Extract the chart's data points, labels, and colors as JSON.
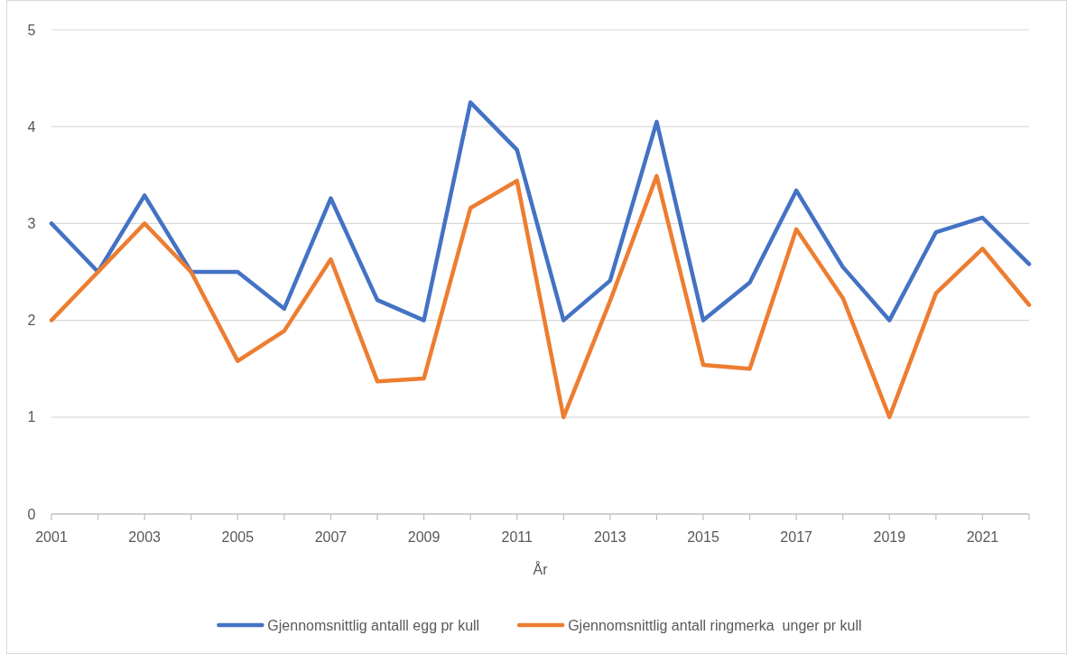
{
  "chart_data": {
    "type": "line",
    "xlabel": "År",
    "x": [
      2001,
      2002,
      2003,
      2004,
      2005,
      2006,
      2007,
      2008,
      2009,
      2010,
      2011,
      2012,
      2013,
      2014,
      2015,
      2016,
      2017,
      2018,
      2019,
      2020,
      2021,
      2022
    ],
    "xlim": [
      2001,
      2022
    ],
    "xticks": [
      2001,
      {
        "value": 2002,
        "label": null
      },
      2003,
      {
        "value": 2004,
        "label": null
      },
      2005,
      {
        "value": 2006,
        "label": null
      },
      2007,
      {
        "value": 2008,
        "label": null
      },
      2009,
      {
        "value": 2010,
        "label": null
      },
      2011,
      {
        "value": 2012,
        "label": null
      },
      2013,
      {
        "value": 2014,
        "label": null
      },
      2015,
      {
        "value": 2016,
        "label": null
      },
      2017,
      {
        "value": 2018,
        "label": null
      },
      2019,
      {
        "value": 2020,
        "label": null
      },
      2021,
      {
        "value": 2022,
        "label": null
      }
    ],
    "ylim": [
      0,
      5
    ],
    "yticks": [
      0,
      1,
      2,
      3,
      4,
      5
    ],
    "grid": "y",
    "legend": "bottom",
    "line_style": "solid",
    "series": [
      {
        "name": "Gjennomsnittlig antalll egg pr kull",
        "color": "#4472c4",
        "values": [
          3.0,
          2.5,
          3.29,
          2.5,
          2.5,
          2.12,
          3.26,
          2.21,
          2.0,
          4.25,
          3.76,
          2.0,
          2.41,
          4.05,
          2.0,
          2.39,
          3.34,
          2.55,
          2.0,
          2.91,
          3.06,
          2.58
        ]
      },
      {
        "name": "Gjennomsnittlig antall ringmerka  unger pr kull",
        "color": "#ed7d31",
        "values": [
          2.0,
          2.5,
          3.0,
          2.5,
          1.58,
          1.89,
          2.63,
          1.37,
          1.4,
          3.16,
          3.44,
          1.0,
          2.2,
          3.49,
          1.54,
          1.5,
          2.94,
          2.23,
          1.0,
          2.28,
          2.74,
          2.16
        ]
      }
    ]
  }
}
